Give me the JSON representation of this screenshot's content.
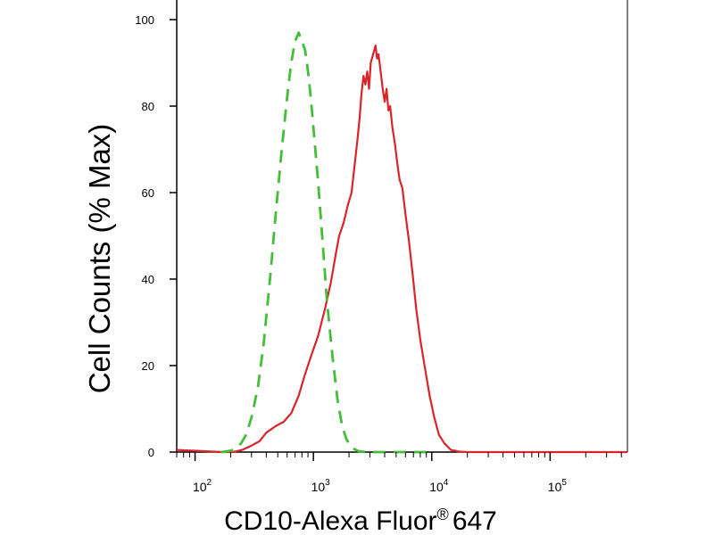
{
  "chart_data": {
    "type": "line",
    "xlabel": "CD10-Alexa Fluor",
    "xlabel_superscript": "®",
    "xlabel_suffix": "647",
    "ylabel": "Cell Counts (% Max)",
    "xscale": "log",
    "xlim": [
      70,
      450000
    ],
    "ylim": [
      0,
      100
    ],
    "yticks": [
      0,
      20,
      40,
      60,
      80,
      100
    ],
    "xtick_base": "10",
    "xtick_exponents": [
      "2",
      "3",
      "4",
      "5"
    ],
    "xticks": [
      100,
      1000,
      10000,
      100000
    ],
    "grid": false,
    "legend": "none",
    "series": [
      {
        "color": "#d9252a",
        "line_style": "solid",
        "points": [
          [
            70,
            0.5
          ],
          [
            120,
            0.2
          ],
          [
            170,
            0
          ],
          [
            210,
            0
          ],
          [
            250,
            0.5
          ],
          [
            300,
            1.5
          ],
          [
            350,
            2.5
          ],
          [
            400,
            4.5
          ],
          [
            480,
            6
          ],
          [
            560,
            7
          ],
          [
            650,
            9
          ],
          [
            750,
            13
          ],
          [
            850,
            18
          ],
          [
            950,
            22
          ],
          [
            1100,
            27
          ],
          [
            1250,
            33
          ],
          [
            1400,
            39
          ],
          [
            1550,
            46
          ],
          [
            1650,
            50
          ],
          [
            1800,
            53
          ],
          [
            1950,
            57
          ],
          [
            2100,
            60
          ],
          [
            2200,
            65
          ],
          [
            2350,
            72
          ],
          [
            2450,
            77
          ],
          [
            2550,
            83
          ],
          [
            2650,
            87
          ],
          [
            2750,
            85
          ],
          [
            2850,
            88
          ],
          [
            2950,
            84
          ],
          [
            3050,
            90
          ],
          [
            3200,
            92
          ],
          [
            3350,
            94
          ],
          [
            3450,
            91
          ],
          [
            3550,
            92
          ],
          [
            3700,
            88
          ],
          [
            3850,
            84
          ],
          [
            4000,
            81
          ],
          [
            4150,
            84
          ],
          [
            4300,
            79
          ],
          [
            4450,
            80
          ],
          [
            4650,
            75
          ],
          [
            4900,
            71
          ],
          [
            5100,
            67
          ],
          [
            5350,
            63
          ],
          [
            5650,
            61
          ],
          [
            6000,
            55
          ],
          [
            6400,
            49
          ],
          [
            6900,
            41
          ],
          [
            7400,
            33
          ],
          [
            8000,
            26
          ],
          [
            8700,
            20
          ],
          [
            9600,
            13
          ],
          [
            10500,
            8
          ],
          [
            11500,
            4
          ],
          [
            12800,
            2
          ],
          [
            14500,
            0.5
          ],
          [
            17000,
            0.1
          ],
          [
            20000,
            0
          ],
          [
            60000,
            0
          ],
          [
            200000,
            0
          ],
          [
            450000,
            0
          ]
        ]
      },
      {
        "color": "#44bd3b",
        "line_style": "dashed",
        "points": [
          [
            165,
            0
          ],
          [
            190,
            0.2
          ],
          [
            210,
            0.5
          ],
          [
            245,
            2
          ],
          [
            270,
            4
          ],
          [
            300,
            8
          ],
          [
            340,
            15
          ],
          [
            380,
            25
          ],
          [
            430,
            40
          ],
          [
            480,
            55
          ],
          [
            540,
            70
          ],
          [
            600,
            82
          ],
          [
            650,
            90
          ],
          [
            700,
            95
          ],
          [
            750,
            97
          ],
          [
            800,
            95
          ],
          [
            850,
            93
          ],
          [
            900,
            88
          ],
          [
            950,
            82
          ],
          [
            1000,
            75
          ],
          [
            1100,
            62
          ],
          [
            1200,
            48
          ],
          [
            1300,
            35
          ],
          [
            1450,
            22
          ],
          [
            1600,
            12
          ],
          [
            1750,
            6
          ],
          [
            1900,
            3
          ],
          [
            2100,
            1
          ],
          [
            2400,
            0.2
          ],
          [
            2800,
            0
          ],
          [
            3500,
            0
          ],
          [
            5000,
            0
          ],
          [
            7000,
            0
          ],
          [
            9000,
            0
          ]
        ]
      }
    ]
  }
}
